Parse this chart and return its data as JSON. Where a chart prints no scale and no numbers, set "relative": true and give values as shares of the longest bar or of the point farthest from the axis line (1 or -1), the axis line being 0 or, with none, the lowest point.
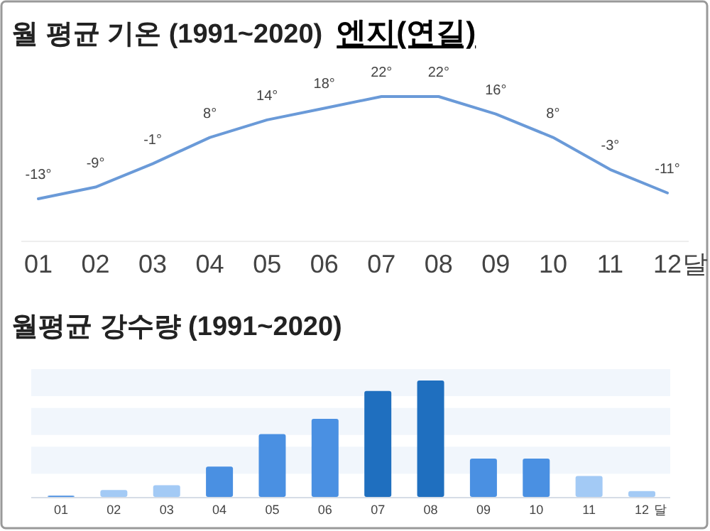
{
  "chart_data": [
    {
      "type": "line",
      "title": "월 평균 기온 (1991~2020)",
      "subtitle": "엔지(연길)",
      "xlabel": "달",
      "categories": [
        "01",
        "02",
        "03",
        "04",
        "05",
        "06",
        "07",
        "08",
        "09",
        "10",
        "11",
        "12"
      ],
      "color": "#6a9ad8",
      "values": [
        -13,
        -9,
        -1,
        8,
        14,
        18,
        22,
        22,
        16,
        8,
        -3,
        -11
      ],
      "value_labels": [
        "-13°",
        "-9°",
        "-1°",
        "8°",
        "14°",
        "18°",
        "22°",
        "22°",
        "16°",
        "8°",
        "-3°",
        "-11°"
      ]
    },
    {
      "type": "bar",
      "title": "월평균 강수량 (1991~2020)",
      "xlabel": "달",
      "relative": true,
      "categories": [
        "01",
        "02",
        "03",
        "04",
        "05",
        "06",
        "07",
        "08",
        "09",
        "10",
        "11",
        "12"
      ],
      "values": [
        0.01,
        0.06,
        0.1,
        0.26,
        0.54,
        0.67,
        0.91,
        1,
        0.33,
        0.33,
        0.18,
        0.05
      ],
      "colors": [
        "#4a90e2",
        "#a3caf5",
        "#a3caf5",
        "#4a90e2",
        "#4a90e2",
        "#4a90e2",
        "#1f6fbf",
        "#1f6fbf",
        "#4a90e2",
        "#4a90e2",
        "#a3caf5",
        "#a3caf5"
      ]
    }
  ]
}
